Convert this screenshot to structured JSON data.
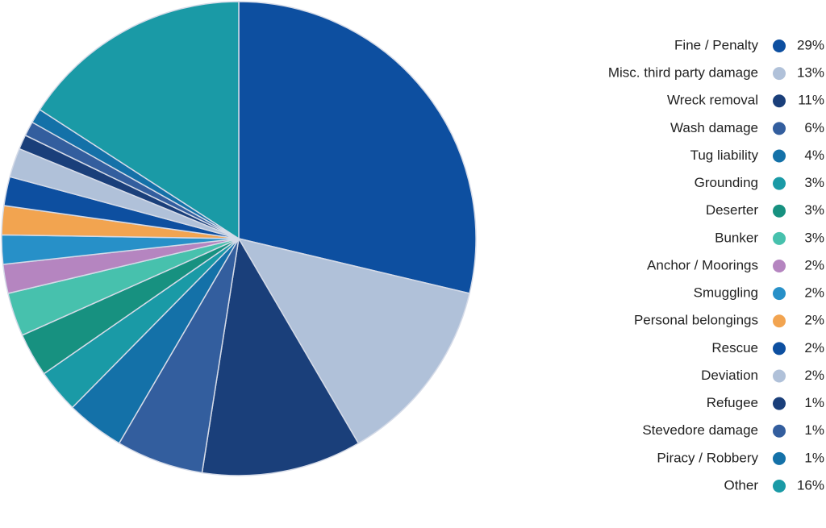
{
  "chart_data": {
    "type": "pie",
    "categories": [
      "Fine / Penalty",
      "Misc. third party damage",
      "Wreck removal",
      "Wash damage",
      "Tug liability",
      "Grounding",
      "Deserter",
      "Bunker",
      "Anchor / Moorings",
      "Smuggling",
      "Personal belongings",
      "Rescue",
      "Deviation",
      "Refugee",
      "Stevedore damage",
      "Piracy / Robbery",
      "Other"
    ],
    "values": [
      29,
      13,
      11,
      6,
      4,
      3,
      3,
      3,
      2,
      2,
      2,
      2,
      2,
      1,
      1,
      1,
      16
    ],
    "value_labels": [
      "29%",
      "13%",
      "11%",
      "6%",
      "4%",
      "3%",
      "3%",
      "3%",
      "2%",
      "2%",
      "2%",
      "2%",
      "2%",
      "1%",
      "1%",
      "1%",
      "16%"
    ],
    "colors": [
      "#0d4fa0",
      "#b0c1d9",
      "#1a3f7a",
      "#335e9e",
      "#1471a8",
      "#1a9aa6",
      "#179180",
      "#47c1ad",
      "#b585c0",
      "#2790c8",
      "#f2a450",
      "#0d4fa0",
      "#b0c1d9",
      "#1a3f7a",
      "#335e9e",
      "#1471a8",
      "#1a9aa6"
    ],
    "legend": "right"
  }
}
